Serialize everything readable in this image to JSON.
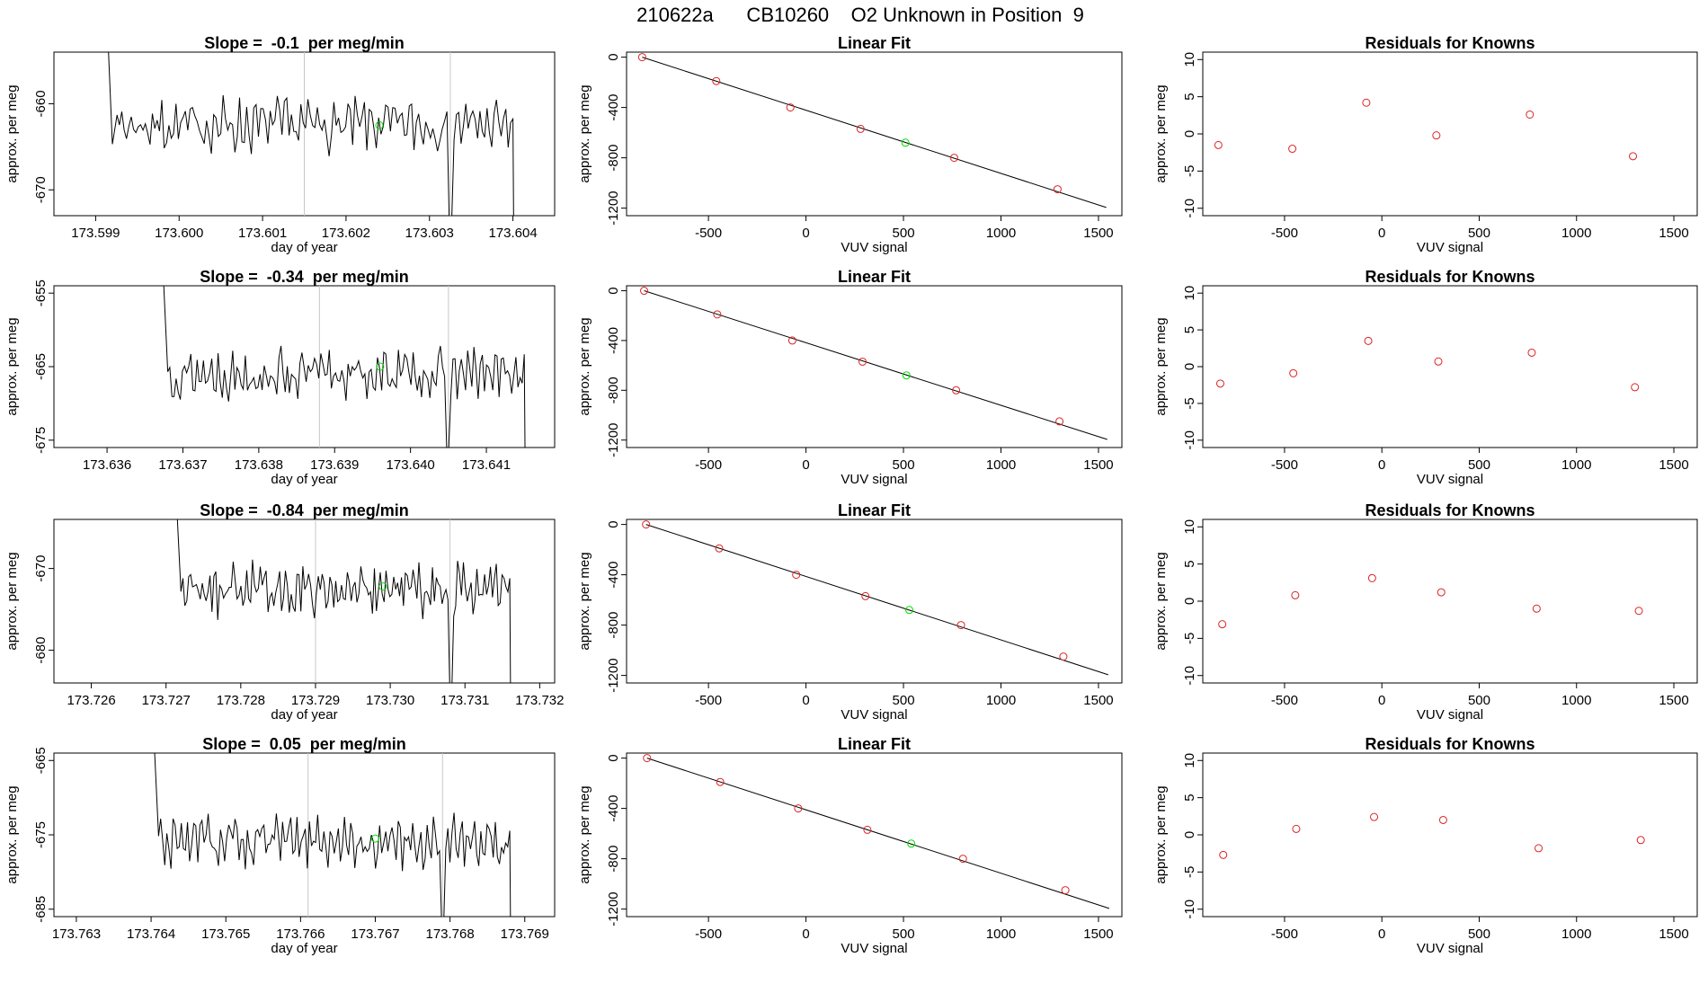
{
  "page_title": "210622a      CB10260    O2 Unknown in Position  9",
  "chart_data": [
    {
      "panel": "trace",
      "type": "line",
      "row": 1,
      "title": "Slope =  -0.1  per meg/min",
      "xlabel": "day of year",
      "ylabel": "approx. per meg",
      "xlim": [
        173.5985,
        173.6045
      ],
      "ylim": [
        -673,
        -654
      ],
      "x_ticks": [
        "173.599",
        "173.600",
        "173.601",
        "173.602",
        "173.603",
        "173.604"
      ],
      "x_tick_values": [
        173.599,
        173.6,
        173.601,
        173.602,
        173.603,
        173.604
      ],
      "y_ticks": [
        "-660",
        "-670"
      ],
      "y_tick_values": [
        -660,
        -670
      ],
      "vlines": [
        173.6015,
        173.60325
      ],
      "trace": {
        "x_start": 173.5992,
        "x_end": 173.604,
        "baseline": -662.5,
        "amplitude": 2.8,
        "seed": 7
      },
      "spikes": [
        {
          "x": 173.60325,
          "y": -674
        }
      ],
      "highlight_point": {
        "x": 173.6024,
        "y": -662.5
      }
    },
    {
      "panel": "fit",
      "type": "scatter",
      "row": 1,
      "title": "Linear Fit",
      "xlabel": "VUV signal",
      "ylabel": "approx. per meg",
      "xlim": [
        -920,
        1620
      ],
      "ylim": [
        -1260,
        40
      ],
      "x_ticks": [
        "-500",
        "0",
        "500",
        "1000",
        "1500"
      ],
      "x_tick_values": [
        -500,
        0,
        500,
        1000,
        1500
      ],
      "y_ticks": [
        "0",
        "-400",
        "-800",
        "-1200"
      ],
      "y_tick_values": [
        0,
        -400,
        -800,
        -1200
      ],
      "line": {
        "x1": -840,
        "y1": 0,
        "x2": 1540,
        "y2": -1195
      },
      "known_points": [
        {
          "x": -840,
          "y": 0
        },
        {
          "x": -460,
          "y": -190
        },
        {
          "x": -80,
          "y": -400
        },
        {
          "x": 280,
          "y": -570
        },
        {
          "x": 760,
          "y": -800
        },
        {
          "x": 1290,
          "y": -1050
        }
      ],
      "unknown_point": {
        "x": 510,
        "y": -680
      }
    },
    {
      "panel": "residuals",
      "type": "scatter",
      "row": 1,
      "title": "Residuals for Knowns",
      "xlabel": "VUV signal",
      "ylabel": "approx. per meg",
      "xlim": [
        -920,
        1620
      ],
      "ylim": [
        -11,
        11
      ],
      "x_ticks": [
        "-500",
        "0",
        "500",
        "1000",
        "1500"
      ],
      "x_tick_values": [
        -500,
        0,
        500,
        1000,
        1500
      ],
      "y_ticks": [
        "10",
        "5",
        "0",
        "-5",
        "-10"
      ],
      "y_tick_values": [
        10,
        5,
        0,
        -5,
        -10
      ],
      "points": [
        {
          "x": -840,
          "y": -1.5
        },
        {
          "x": -460,
          "y": -2.0
        },
        {
          "x": -80,
          "y": 4.2
        },
        {
          "x": 280,
          "y": -0.2
        },
        {
          "x": 760,
          "y": 2.6
        },
        {
          "x": 1290,
          "y": -3.0
        }
      ]
    },
    {
      "panel": "trace",
      "type": "line",
      "row": 2,
      "title": "Slope =  -0.34  per meg/min",
      "xlabel": "day of year",
      "ylabel": "approx. per meg",
      "xlim": [
        173.6353,
        173.6419
      ],
      "ylim": [
        -676,
        -654
      ],
      "x_ticks": [
        "173.636",
        "173.637",
        "173.638",
        "173.639",
        "173.640",
        "173.641"
      ],
      "x_tick_values": [
        173.636,
        173.637,
        173.638,
        173.639,
        173.64,
        173.641
      ],
      "y_ticks": [
        "-655",
        "-665",
        "-675"
      ],
      "y_tick_values": [
        -655,
        -665,
        -675
      ],
      "vlines": [
        173.6388,
        173.6405
      ],
      "trace": {
        "x_start": 173.6368,
        "x_end": 173.6415,
        "baseline": -666,
        "amplitude": 3.0,
        "seed": 13
      },
      "spikes": [
        {
          "x": 173.6405,
          "y": -676
        }
      ],
      "highlight_point": {
        "x": 173.6396,
        "y": -665
      }
    },
    {
      "panel": "fit",
      "type": "scatter",
      "row": 2,
      "title": "Linear Fit",
      "xlabel": "VUV signal",
      "ylabel": "approx. per meg",
      "xlim": [
        -920,
        1620
      ],
      "ylim": [
        -1260,
        40
      ],
      "x_ticks": [
        "-500",
        "0",
        "500",
        "1000",
        "1500"
      ],
      "x_tick_values": [
        -500,
        0,
        500,
        1000,
        1500
      ],
      "y_ticks": [
        "0",
        "-400",
        "-800",
        "-1200"
      ],
      "y_tick_values": [
        0,
        -400,
        -800,
        -1200
      ],
      "line": {
        "x1": -830,
        "y1": 0,
        "x2": 1545,
        "y2": -1195
      },
      "known_points": [
        {
          "x": -830,
          "y": 0
        },
        {
          "x": -455,
          "y": -190
        },
        {
          "x": -70,
          "y": -400
        },
        {
          "x": 290,
          "y": -570
        },
        {
          "x": 770,
          "y": -800
        },
        {
          "x": 1300,
          "y": -1050
        }
      ],
      "unknown_point": {
        "x": 515,
        "y": -680
      }
    },
    {
      "panel": "residuals",
      "type": "scatter",
      "row": 2,
      "title": "Residuals for Knowns",
      "xlabel": "VUV signal",
      "ylabel": "approx. per meg",
      "xlim": [
        -920,
        1620
      ],
      "ylim": [
        -11,
        11
      ],
      "x_ticks": [
        "-500",
        "0",
        "500",
        "1000",
        "1500"
      ],
      "x_tick_values": [
        -500,
        0,
        500,
        1000,
        1500
      ],
      "y_ticks": [
        "10",
        "5",
        "0",
        "-5",
        "-10"
      ],
      "y_tick_values": [
        10,
        5,
        0,
        -5,
        -10
      ],
      "points": [
        {
          "x": -830,
          "y": -2.3
        },
        {
          "x": -455,
          "y": -0.9
        },
        {
          "x": -70,
          "y": 3.5
        },
        {
          "x": 290,
          "y": 0.7
        },
        {
          "x": 770,
          "y": 1.9
        },
        {
          "x": 1300,
          "y": -2.8
        }
      ]
    },
    {
      "panel": "trace",
      "type": "line",
      "row": 3,
      "title": "Slope =  -0.84  per meg/min",
      "xlabel": "day of year",
      "ylabel": "approx. per meg",
      "xlim": [
        173.7255,
        173.7322
      ],
      "ylim": [
        -684,
        -664
      ],
      "x_ticks": [
        "173.726",
        "173.727",
        "173.728",
        "173.729",
        "173.730",
        "173.731",
        "173.732"
      ],
      "x_tick_values": [
        173.726,
        173.727,
        173.728,
        173.729,
        173.73,
        173.731,
        173.732
      ],
      "y_ticks": [
        "-670",
        "-680"
      ],
      "y_tick_values": [
        -670,
        -680
      ],
      "vlines": [
        173.729,
        173.7308
      ],
      "trace": {
        "x_start": 173.7272,
        "x_end": 173.7316,
        "baseline": -672.5,
        "amplitude": 3.0,
        "seed": 21
      },
      "spikes": [
        {
          "x": 173.7308,
          "y": -685
        }
      ],
      "highlight_point": {
        "x": 173.7299,
        "y": -672.2
      }
    },
    {
      "panel": "fit",
      "type": "scatter",
      "row": 3,
      "title": "Linear Fit",
      "xlabel": "VUV signal",
      "ylabel": "approx. per meg",
      "xlim": [
        -920,
        1620
      ],
      "ylim": [
        -1260,
        40
      ],
      "x_ticks": [
        "-500",
        "0",
        "500",
        "1000",
        "1500"
      ],
      "x_tick_values": [
        -500,
        0,
        500,
        1000,
        1500
      ],
      "y_ticks": [
        "0",
        "-400",
        "-800",
        "-1200"
      ],
      "y_tick_values": [
        0,
        -400,
        -800,
        -1200
      ],
      "line": {
        "x1": -820,
        "y1": 0,
        "x2": 1550,
        "y2": -1195
      },
      "known_points": [
        {
          "x": -820,
          "y": 0
        },
        {
          "x": -445,
          "y": -190
        },
        {
          "x": -50,
          "y": -400
        },
        {
          "x": 305,
          "y": -570
        },
        {
          "x": 795,
          "y": -800
        },
        {
          "x": 1320,
          "y": -1050
        }
      ],
      "unknown_point": {
        "x": 530,
        "y": -680
      }
    },
    {
      "panel": "residuals",
      "type": "scatter",
      "row": 3,
      "title": "Residuals for Knowns",
      "xlabel": "VUV signal",
      "ylabel": "approx. per meg",
      "xlim": [
        -920,
        1620
      ],
      "ylim": [
        -11,
        11
      ],
      "x_ticks": [
        "-500",
        "0",
        "500",
        "1000",
        "1500"
      ],
      "x_tick_values": [
        -500,
        0,
        500,
        1000,
        1500
      ],
      "y_ticks": [
        "10",
        "5",
        "0",
        "-5",
        "-10"
      ],
      "y_tick_values": [
        10,
        5,
        0,
        -5,
        -10
      ],
      "points": [
        {
          "x": -820,
          "y": -3.1
        },
        {
          "x": -445,
          "y": 0.8
        },
        {
          "x": -50,
          "y": 3.1
        },
        {
          "x": 305,
          "y": 1.2
        },
        {
          "x": 795,
          "y": -1.0
        },
        {
          "x": 1320,
          "y": -1.3
        }
      ]
    },
    {
      "panel": "trace",
      "type": "line",
      "row": 4,
      "title": "Slope =  0.05  per meg/min",
      "xlabel": "day of year",
      "ylabel": "approx. per meg",
      "xlim": [
        173.7627,
        173.7694
      ],
      "ylim": [
        -686,
        -664
      ],
      "x_ticks": [
        "173.763",
        "173.764",
        "173.765",
        "173.766",
        "173.767",
        "173.768",
        "173.769"
      ],
      "x_tick_values": [
        173.763,
        173.764,
        173.765,
        173.766,
        173.767,
        173.768,
        173.769
      ],
      "y_ticks": [
        "-665",
        "-675",
        "-685"
      ],
      "y_tick_values": [
        -665,
        -675,
        -685
      ],
      "vlines": [
        173.7661,
        173.7679
      ],
      "trace": {
        "x_start": 173.7641,
        "x_end": 173.7688,
        "baseline": -676,
        "amplitude": 3.0,
        "seed": 31
      },
      "spikes": [
        {
          "x": 173.7679,
          "y": -687
        }
      ],
      "highlight_point": {
        "x": 173.767,
        "y": -675.5
      }
    },
    {
      "panel": "fit",
      "type": "scatter",
      "row": 4,
      "title": "Linear Fit",
      "xlabel": "VUV signal",
      "ylabel": "approx. per meg",
      "xlim": [
        -920,
        1620
      ],
      "ylim": [
        -1260,
        40
      ],
      "x_ticks": [
        "-500",
        "0",
        "500",
        "1000",
        "1500"
      ],
      "x_tick_values": [
        -500,
        0,
        500,
        1000,
        1500
      ],
      "y_ticks": [
        "0",
        "-400",
        "-800",
        "-1200"
      ],
      "y_tick_values": [
        0,
        -400,
        -800,
        -1200
      ],
      "line": {
        "x1": -815,
        "y1": 0,
        "x2": 1555,
        "y2": -1195
      },
      "known_points": [
        {
          "x": -815,
          "y": 0
        },
        {
          "x": -440,
          "y": -190
        },
        {
          "x": -40,
          "y": -400
        },
        {
          "x": 315,
          "y": -570
        },
        {
          "x": 805,
          "y": -800
        },
        {
          "x": 1330,
          "y": -1050
        }
      ],
      "unknown_point": {
        "x": 540,
        "y": -680
      }
    },
    {
      "panel": "residuals",
      "type": "scatter",
      "row": 4,
      "title": "Residuals for Knowns",
      "xlabel": "VUV signal",
      "ylabel": "approx. per meg",
      "xlim": [
        -920,
        1620
      ],
      "ylim": [
        -11,
        11
      ],
      "x_ticks": [
        "-500",
        "0",
        "500",
        "1000",
        "1500"
      ],
      "x_tick_values": [
        -500,
        0,
        500,
        1000,
        1500
      ],
      "y_ticks": [
        "10",
        "5",
        "0",
        "-5",
        "-10"
      ],
      "y_tick_values": [
        10,
        5,
        0,
        -5,
        -10
      ],
      "points": [
        {
          "x": -815,
          "y": -2.7
        },
        {
          "x": -440,
          "y": 0.8
        },
        {
          "x": -40,
          "y": 2.4
        },
        {
          "x": 315,
          "y": 2.0
        },
        {
          "x": 805,
          "y": -1.8
        },
        {
          "x": 1330,
          "y": -0.7
        }
      ]
    }
  ]
}
